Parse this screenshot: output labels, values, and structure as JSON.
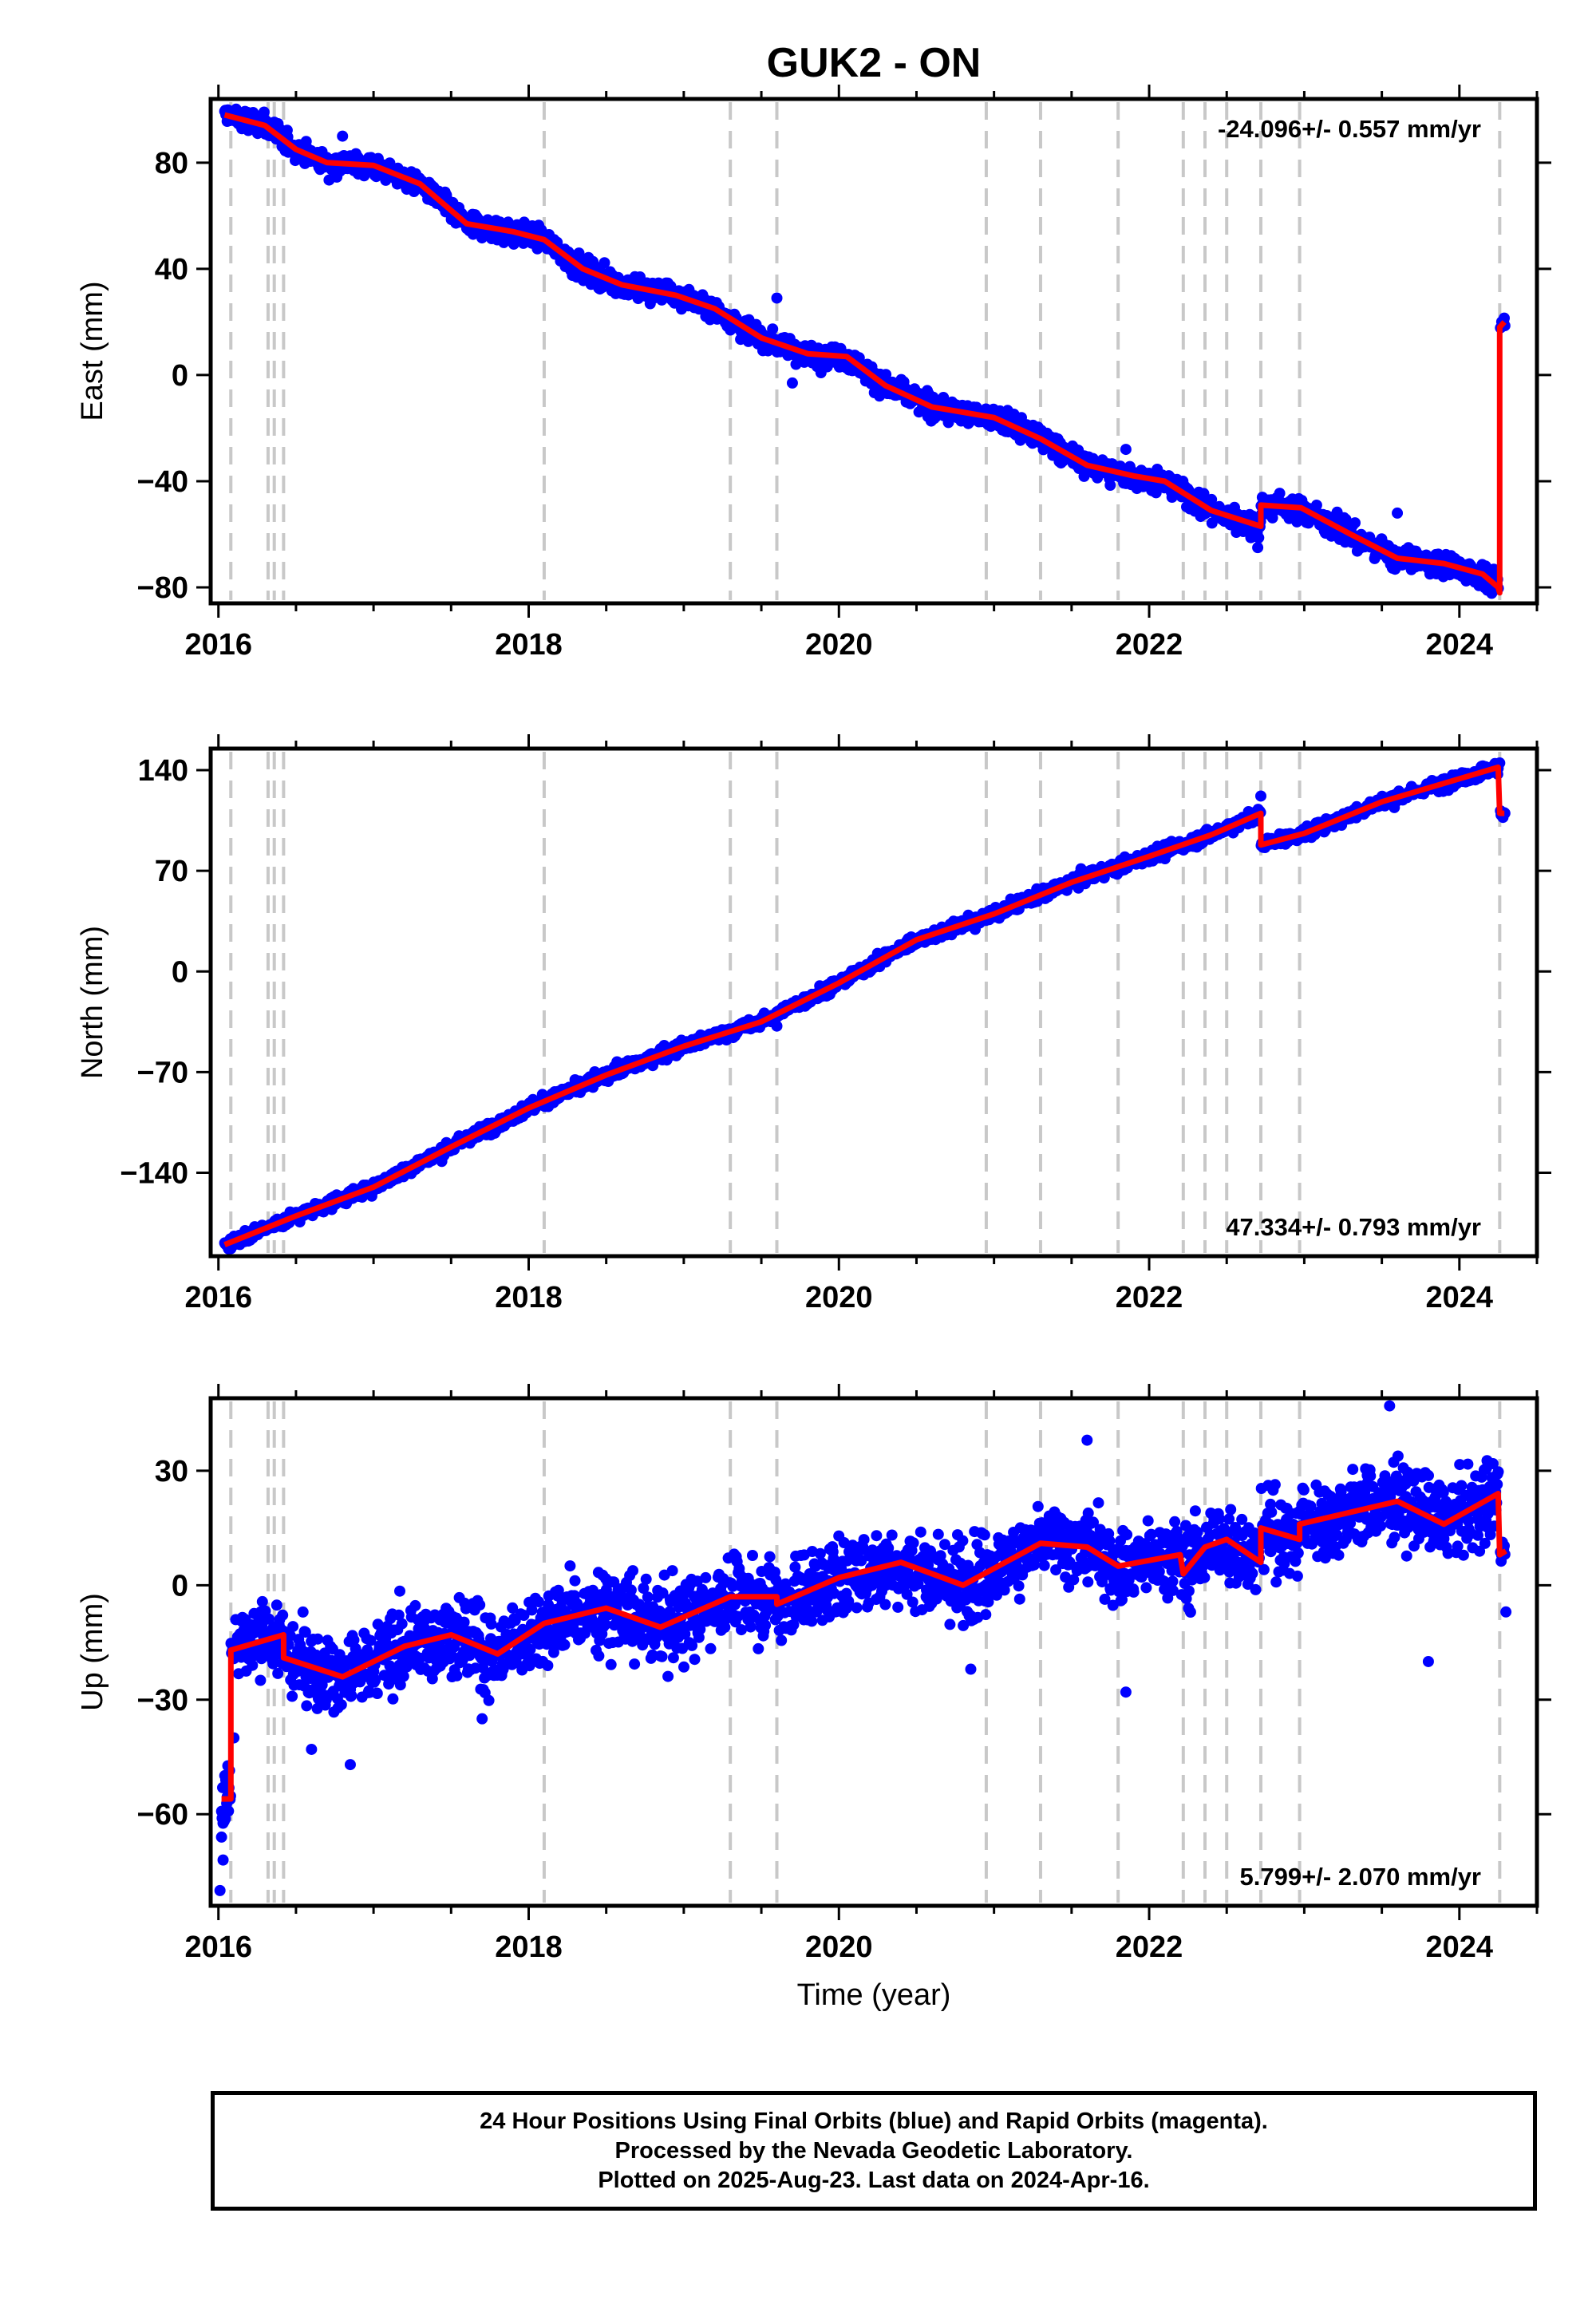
{
  "title": "GUK2 - ON",
  "xlabel": "Time (year)",
  "footer": {
    "line1": "24 Hour Positions Using Final Orbits (blue) and Rapid Orbits (magenta).",
    "line2": "Processed by the Nevada Geodetic Laboratory.",
    "line3": "Plotted on 2025-Aug-23. Last data on 2024-Apr-16."
  },
  "colors": {
    "points": "#0000ff",
    "model": "#ff0000",
    "events": "#c8c8c8",
    "frame": "#000000"
  },
  "chart_data": [
    {
      "type": "scatter",
      "component": "East",
      "ylabel": "East (mm)",
      "rate_label": "-24.096+/- 0.557 mm/yr",
      "xlim": [
        2015.95,
        2024.5
      ],
      "ylim": [
        -86,
        104
      ],
      "xticks": [
        2016,
        2018,
        2020,
        2022,
        2024
      ],
      "yticks": [
        -80,
        -40,
        0,
        40,
        80
      ],
      "events": [
        2016.08,
        2016.32,
        2016.36,
        2016.42,
        2018.1,
        2019.3,
        2019.6,
        2020.95,
        2021.3,
        2021.8,
        2022.22,
        2022.36,
        2022.5,
        2022.72,
        2022.97,
        2024.26
      ],
      "model": [
        [
          2016.04,
          98
        ],
        [
          2016.3,
          94
        ],
        [
          2016.5,
          85
        ],
        [
          2016.7,
          80
        ],
        [
          2017.0,
          79
        ],
        [
          2017.3,
          72
        ],
        [
          2017.6,
          57
        ],
        [
          2017.9,
          54
        ],
        [
          2018.1,
          51
        ],
        [
          2018.35,
          40
        ],
        [
          2018.6,
          34
        ],
        [
          2018.95,
          30
        ],
        [
          2019.2,
          25
        ],
        [
          2019.5,
          14
        ],
        [
          2019.8,
          8
        ],
        [
          2020.05,
          7
        ],
        [
          2020.3,
          -4
        ],
        [
          2020.6,
          -12
        ],
        [
          2021.0,
          -16
        ],
        [
          2021.3,
          -24
        ],
        [
          2021.6,
          -34
        ],
        [
          2021.9,
          -38
        ],
        [
          2022.1,
          -40
        ],
        [
          2022.4,
          -51
        ],
        [
          2022.72,
          -57
        ],
        [
          2022.72,
          -49
        ],
        [
          2022.98,
          -50
        ],
        [
          2023.3,
          -60
        ],
        [
          2023.6,
          -69
        ],
        [
          2023.9,
          -71
        ],
        [
          2024.15,
          -75
        ],
        [
          2024.25,
          -80
        ],
        [
          2024.26,
          -82
        ],
        [
          2024.26,
          18
        ],
        [
          2024.29,
          20
        ]
      ],
      "noise": 3,
      "outliers": [
        [
          2016.8,
          90
        ],
        [
          2019.6,
          29
        ],
        [
          2019.7,
          -3
        ],
        [
          2021.85,
          -28
        ],
        [
          2022.7,
          -65
        ],
        [
          2023.6,
          -52
        ]
      ]
    },
    {
      "type": "scatter",
      "component": "North",
      "ylabel": "North (mm)",
      "rate_label": "47.334+/- 0.793 mm/yr",
      "xlim": [
        2015.95,
        2024.5
      ],
      "ylim": [
        -198,
        155
      ],
      "xticks": [
        2016,
        2018,
        2020,
        2022,
        2024
      ],
      "yticks": [
        -140,
        -70,
        0,
        70,
        140
      ],
      "events": [
        2016.08,
        2016.32,
        2016.36,
        2016.42,
        2018.1,
        2019.3,
        2019.6,
        2020.95,
        2021.3,
        2021.8,
        2022.22,
        2022.36,
        2022.5,
        2022.72,
        2022.97,
        2024.26
      ],
      "model": [
        [
          2016.04,
          -190
        ],
        [
          2016.5,
          -170
        ],
        [
          2017.0,
          -150
        ],
        [
          2017.5,
          -122
        ],
        [
          2018.0,
          -95
        ],
        [
          2018.5,
          -72
        ],
        [
          2019.0,
          -52
        ],
        [
          2019.5,
          -35
        ],
        [
          2020.0,
          -8
        ],
        [
          2020.5,
          22
        ],
        [
          2021.0,
          40
        ],
        [
          2021.5,
          62
        ],
        [
          2022.0,
          80
        ],
        [
          2022.4,
          95
        ],
        [
          2022.72,
          110
        ],
        [
          2022.72,
          88
        ],
        [
          2023.0,
          96
        ],
        [
          2023.5,
          118
        ],
        [
          2024.0,
          134
        ],
        [
          2024.25,
          142
        ],
        [
          2024.26,
          110
        ],
        [
          2024.29,
          110
        ]
      ],
      "noise": 3,
      "outliers": [
        [
          2022.72,
          122
        ],
        [
          2019.6,
          -38
        ],
        [
          2024.26,
          145
        ]
      ]
    },
    {
      "type": "scatter",
      "component": "Up",
      "ylabel": "Up (mm)",
      "rate_label": "5.799+/- 2.070 mm/yr",
      "xlim": [
        2015.95,
        2024.5
      ],
      "ylim": [
        -84,
        49
      ],
      "xticks": [
        2016,
        2018,
        2020,
        2022,
        2024
      ],
      "yticks": [
        -60,
        -30,
        0,
        30
      ],
      "events": [
        2016.08,
        2016.32,
        2016.36,
        2016.42,
        2018.1,
        2019.3,
        2019.6,
        2020.95,
        2021.3,
        2021.8,
        2022.22,
        2022.36,
        2022.5,
        2022.72,
        2022.97,
        2024.26
      ],
      "model": [
        [
          2016.02,
          -56
        ],
        [
          2016.08,
          -56
        ],
        [
          2016.08,
          -17
        ],
        [
          2016.42,
          -13
        ],
        [
          2016.42,
          -19
        ],
        [
          2016.8,
          -24
        ],
        [
          2017.2,
          -16
        ],
        [
          2017.5,
          -13
        ],
        [
          2017.8,
          -18
        ],
        [
          2018.1,
          -10
        ],
        [
          2018.5,
          -6
        ],
        [
          2018.85,
          -11
        ],
        [
          2019.3,
          -3
        ],
        [
          2019.6,
          -3
        ],
        [
          2019.6,
          -5
        ],
        [
          2020.0,
          2
        ],
        [
          2020.4,
          6
        ],
        [
          2020.8,
          0
        ],
        [
          2021.3,
          11
        ],
        [
          2021.6,
          10
        ],
        [
          2021.8,
          5
        ],
        [
          2022.2,
          8
        ],
        [
          2022.22,
          3
        ],
        [
          2022.36,
          10
        ],
        [
          2022.5,
          12
        ],
        [
          2022.72,
          6
        ],
        [
          2022.72,
          15
        ],
        [
          2022.97,
          12
        ],
        [
          2022.97,
          16
        ],
        [
          2023.6,
          22
        ],
        [
          2023.9,
          16
        ],
        [
          2024.25,
          24
        ],
        [
          2024.26,
          8
        ],
        [
          2024.3,
          9
        ]
      ],
      "noise": 7,
      "outliers": [
        [
          2016.01,
          -80
        ],
        [
          2016.03,
          -72
        ],
        [
          2016.02,
          -66
        ],
        [
          2016.05,
          -52
        ],
        [
          2016.1,
          -40
        ],
        [
          2016.6,
          -43
        ],
        [
          2016.85,
          -47
        ],
        [
          2017.7,
          -35
        ],
        [
          2021.85,
          -28
        ],
        [
          2023.55,
          47
        ],
        [
          2021.6,
          38
        ],
        [
          2023.8,
          -20
        ],
        [
          2020.85,
          -22
        ],
        [
          2024.3,
          -7
        ]
      ]
    }
  ]
}
